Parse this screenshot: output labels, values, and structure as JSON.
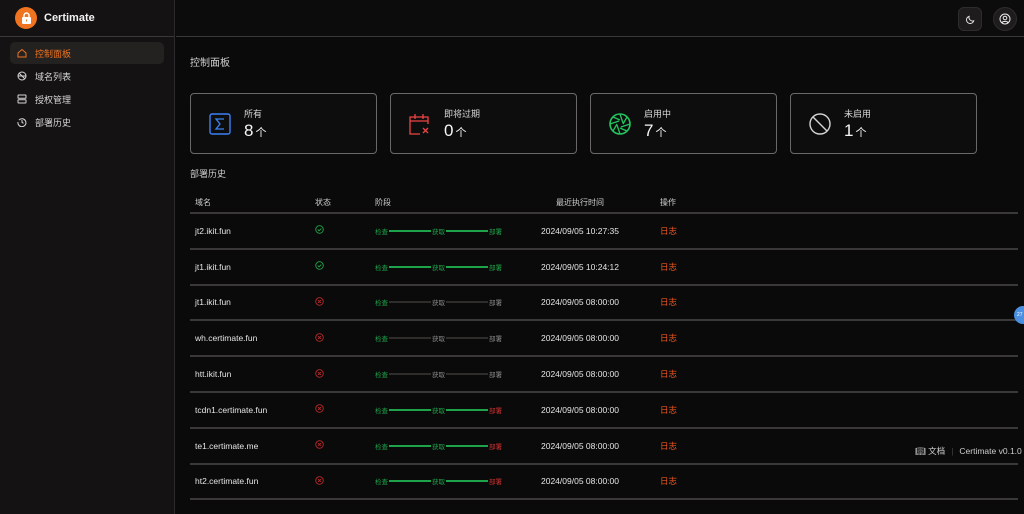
{
  "app": {
    "name": "Certimate"
  },
  "sidebar": {
    "items": [
      {
        "label": "控制面板",
        "icon": "home-icon",
        "active": true
      },
      {
        "label": "域名列表",
        "icon": "globe-icon"
      },
      {
        "label": "授权管理",
        "icon": "server-icon"
      },
      {
        "label": "部署历史",
        "icon": "history-icon"
      }
    ]
  },
  "header": {
    "theme_icon": "moon-icon",
    "user_icon": "user-circle-icon"
  },
  "page": {
    "title": "控制面板"
  },
  "cards": [
    {
      "label": "所有",
      "value": "8",
      "unit": "个",
      "icon": "sigma-icon",
      "color": "#3b82f6"
    },
    {
      "label": "即将过期",
      "value": "0",
      "unit": "个",
      "icon": "calendar-x-icon",
      "color": "#ef4444"
    },
    {
      "label": "启用中",
      "value": "7",
      "unit": "个",
      "icon": "aperture-icon",
      "color": "#22c55e"
    },
    {
      "label": "未启用",
      "value": "1",
      "unit": "个",
      "icon": "ban-icon",
      "color": "#d4d4d4"
    }
  ],
  "history": {
    "title": "部署历史",
    "columns": [
      "域名",
      "状态",
      "阶段",
      "最近执行时间",
      "操作"
    ],
    "stage_labels": [
      "检查",
      "获取",
      "部署"
    ],
    "rows": [
      {
        "domain": "jt2.ikit.fun",
        "status": "success",
        "stages": [
          "success",
          "success",
          "success"
        ],
        "time": "2024/09/05 10:27:35",
        "action": "日志"
      },
      {
        "domain": "jt1.ikit.fun",
        "status": "success",
        "stages": [
          "success",
          "success",
          "success"
        ],
        "time": "2024/09/05 10:24:12",
        "action": "日志"
      },
      {
        "domain": "jt1.ikit.fun",
        "status": "fail",
        "stages": [
          "success",
          "pending",
          "pending"
        ],
        "time": "2024/09/05 08:00:00",
        "action": "日志"
      },
      {
        "domain": "wh.certimate.fun",
        "status": "fail",
        "stages": [
          "success",
          "pending",
          "pending"
        ],
        "time": "2024/09/05 08:00:00",
        "action": "日志"
      },
      {
        "domain": "htt.ikit.fun",
        "status": "fail",
        "stages": [
          "success",
          "pending",
          "pending"
        ],
        "time": "2024/09/05 08:00:00",
        "action": "日志"
      },
      {
        "domain": "tcdn1.certimate.fun",
        "status": "fail",
        "stages": [
          "success",
          "success",
          "fail"
        ],
        "time": "2024/09/05 08:00:00",
        "action": "日志"
      },
      {
        "domain": "te1.certimate.me",
        "status": "fail",
        "stages": [
          "success",
          "success",
          "fail"
        ],
        "time": "2024/09/05 08:00:00",
        "action": "日志"
      },
      {
        "domain": "ht2.certimate.fun",
        "status": "fail",
        "stages": [
          "success",
          "success",
          "fail"
        ],
        "time": "2024/09/05 08:00:00",
        "action": "日志"
      }
    ]
  },
  "footer": {
    "docs": "文档",
    "version": "Certimate v0.1.0"
  },
  "bubble": "27"
}
